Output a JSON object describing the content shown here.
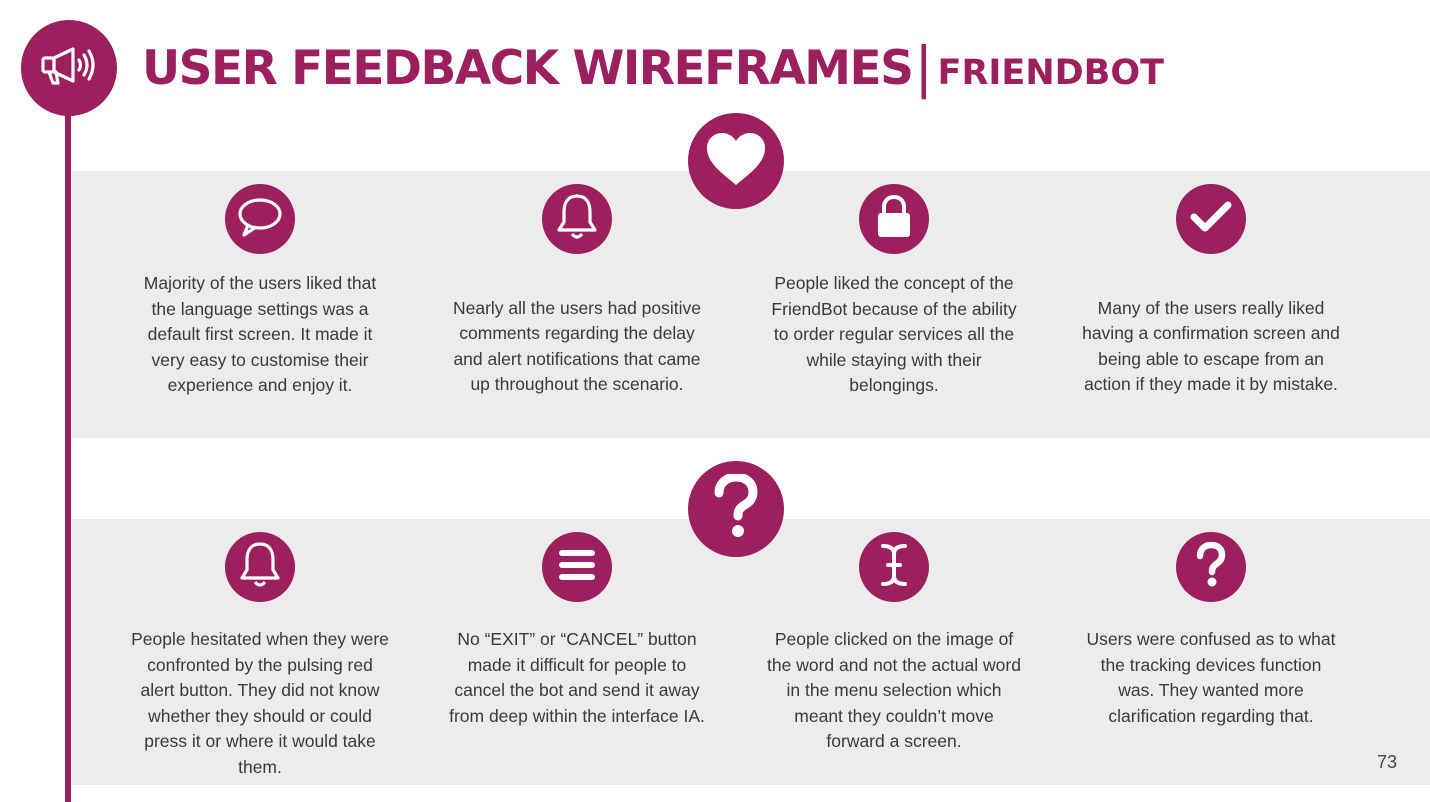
{
  "header": {
    "icon": "megaphone-icon",
    "title": "USER FEEDBACK WIREFRAMES",
    "divider": "|",
    "subtitle": "FRIENDBOT"
  },
  "positive_section": {
    "icon": "heart-icon",
    "items": [
      {
        "icon": "speech-bubble-icon",
        "text": "Majority of the users liked that the language settings was a default first screen. It made it very easy to customise their experience and enjoy it."
      },
      {
        "icon": "bell-icon",
        "text": "Nearly all the users had positive comments regarding the delay and alert notifications that came up throughout the scenario."
      },
      {
        "icon": "lock-icon",
        "text": "People liked the concept of the FriendBot because of the ability to order regular services all the while staying with their belongings."
      },
      {
        "icon": "checkmark-icon",
        "text": "Many of the users really liked having a confirmation screen and being able to escape from an action if they made it by mistake."
      }
    ]
  },
  "issues_section": {
    "icon": "question-mark-icon",
    "items": [
      {
        "icon": "bell-icon",
        "text": "People hesitated when they were confronted by the pulsing red alert button. They did not know whether they should or could press it or where it would take them."
      },
      {
        "icon": "menu-icon",
        "text": "No “EXIT” or “CANCEL” button made it difficult for people to cancel the bot and send it away from deep within the interface IA."
      },
      {
        "icon": "text-cursor-icon",
        "text": "People clicked on the image of the word and not the actual word in the menu selection which meant they couldn’t move forward a screen."
      },
      {
        "icon": "question-mark-icon",
        "text": "Users were confused as to what the tracking devices function was. They wanted more clarification regarding that."
      }
    ]
  },
  "page_number": "73",
  "colors": {
    "brand": "#9c1f5e",
    "band": "#ececec"
  }
}
